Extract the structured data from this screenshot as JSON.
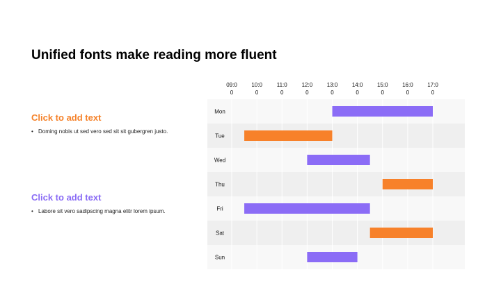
{
  "slide": {
    "title": "Unified fonts make reading more fluent"
  },
  "sections": [
    {
      "heading": "Click to add text",
      "heading_color": "#F5822A",
      "bullet": "Doming nobis ut sed vero sed sit sit gubergren justo."
    },
    {
      "heading": "Click to add text",
      "heading_color": "#8A6CF5",
      "bullet": "Labore sit vero sadipscing magna elitr lorem ipsum."
    }
  ],
  "chart_data": {
    "type": "gantt",
    "time_ticks": [
      "09:00",
      "10:00",
      "11:00",
      "12:00",
      "13:00",
      "14:00",
      "15:00",
      "16:00",
      "17:00"
    ],
    "time_range": [
      9,
      17
    ],
    "grid": true,
    "colors": {
      "purple": "#8B6CF6",
      "orange": "#F7812A"
    },
    "rows": [
      {
        "day": "Mon",
        "start": 13.0,
        "end": 17.0,
        "color": "purple"
      },
      {
        "day": "Tue",
        "start": 9.5,
        "end": 13.0,
        "color": "orange"
      },
      {
        "day": "Wed",
        "start": 12.0,
        "end": 14.5,
        "color": "purple"
      },
      {
        "day": "Thu",
        "start": 15.0,
        "end": 17.0,
        "color": "orange"
      },
      {
        "day": "Fri",
        "start": 9.5,
        "end": 14.5,
        "color": "purple"
      },
      {
        "day": "Sat",
        "start": 14.5,
        "end": 17.0,
        "color": "orange"
      },
      {
        "day": "Sun",
        "start": 12.0,
        "end": 14.0,
        "color": "purple"
      }
    ]
  }
}
